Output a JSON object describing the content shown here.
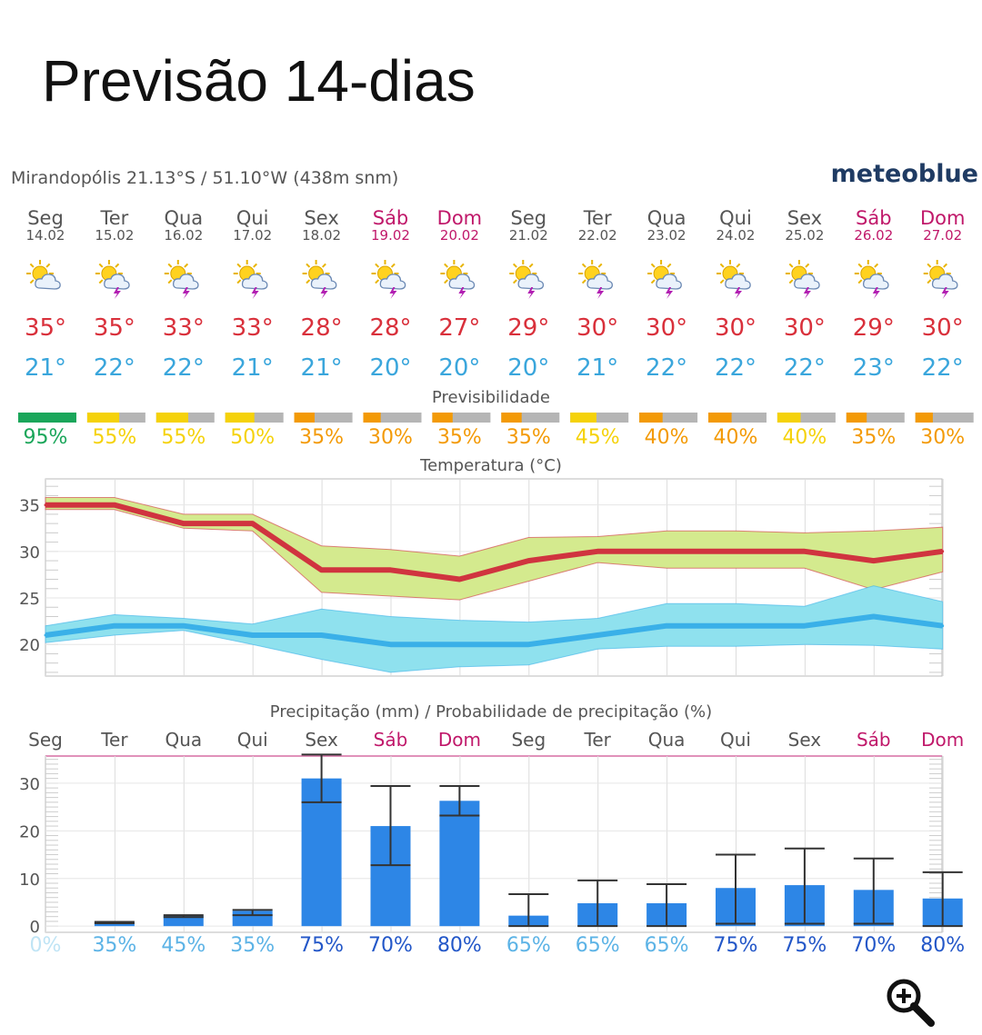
{
  "page": {
    "title": "Previsão 14-dias"
  },
  "location": {
    "text": "Mirandopólis  21.13°S / 51.10°W (438m snm)"
  },
  "brand": {
    "name": "meteoblue"
  },
  "colors": {
    "weekend": "#c0186a",
    "weekday": "#555555",
    "max_temp": "#d9303b",
    "min_temp": "#3aa6dc",
    "pred_green": "#1aa65a",
    "pred_yellow": "#f5d20a",
    "pred_orange": "#f39a06",
    "pred_grey": "#b5b5b5",
    "max_band": "#d4ea8e",
    "max_line": "#d0343f",
    "min_band": "#8fe1ee",
    "min_line": "#3ab0e8",
    "precip_bar": "#2d86e6",
    "prob_low": "#5cb3e6",
    "prob_high": "#2357c8"
  },
  "days": [
    {
      "name": "Seg",
      "date": "14.02",
      "weekend": false,
      "icon": "sun-cloud-icon",
      "tmax": "35°",
      "tmin": "21°",
      "pred": "95%",
      "pred_level": "green",
      "pred_fill": 1.0
    },
    {
      "name": "Ter",
      "date": "15.02",
      "weekend": false,
      "icon": "sun-thunderstorm-icon",
      "tmax": "35°",
      "tmin": "22°",
      "pred": "55%",
      "pred_level": "yellow",
      "pred_fill": 0.55
    },
    {
      "name": "Qua",
      "date": "16.02",
      "weekend": false,
      "icon": "sun-thunderstorm-icon",
      "tmax": "33°",
      "tmin": "22°",
      "pred": "55%",
      "pred_level": "yellow",
      "pred_fill": 0.55
    },
    {
      "name": "Qui",
      "date": "17.02",
      "weekend": false,
      "icon": "sun-thunderstorm-icon",
      "tmax": "33°",
      "tmin": "21°",
      "pred": "50%",
      "pred_level": "yellow",
      "pred_fill": 0.5
    },
    {
      "name": "Sex",
      "date": "18.02",
      "weekend": false,
      "icon": "sun-thunderstorm-icon",
      "tmax": "28°",
      "tmin": "21°",
      "pred": "35%",
      "pred_level": "orange",
      "pred_fill": 0.35
    },
    {
      "name": "Sáb",
      "date": "19.02",
      "weekend": true,
      "icon": "sun-thunderstorm-icon",
      "tmax": "28°",
      "tmin": "20°",
      "pred": "30%",
      "pred_level": "orange",
      "pred_fill": 0.3
    },
    {
      "name": "Dom",
      "date": "20.02",
      "weekend": true,
      "icon": "sun-thunderstorm-icon",
      "tmax": "27°",
      "tmin": "20°",
      "pred": "35%",
      "pred_level": "orange",
      "pred_fill": 0.35
    },
    {
      "name": "Seg",
      "date": "21.02",
      "weekend": false,
      "icon": "sun-thunderstorm-icon",
      "tmax": "29°",
      "tmin": "20°",
      "pred": "35%",
      "pred_level": "orange",
      "pred_fill": 0.35
    },
    {
      "name": "Ter",
      "date": "22.02",
      "weekend": false,
      "icon": "sun-thunderstorm-icon",
      "tmax": "30°",
      "tmin": "21°",
      "pred": "45%",
      "pred_level": "yellow",
      "pred_fill": 0.45
    },
    {
      "name": "Qua",
      "date": "23.02",
      "weekend": false,
      "icon": "sun-thunderstorm-icon",
      "tmax": "30°",
      "tmin": "22°",
      "pred": "40%",
      "pred_level": "orange",
      "pred_fill": 0.4
    },
    {
      "name": "Qui",
      "date": "24.02",
      "weekend": false,
      "icon": "sun-thunderstorm-icon",
      "tmax": "30°",
      "tmin": "22°",
      "pred": "40%",
      "pred_level": "orange",
      "pred_fill": 0.4
    },
    {
      "name": "Sex",
      "date": "25.02",
      "weekend": false,
      "icon": "sun-thunderstorm-icon",
      "tmax": "30°",
      "tmin": "22°",
      "pred": "40%",
      "pred_level": "yellow",
      "pred_fill": 0.4
    },
    {
      "name": "Sáb",
      "date": "26.02",
      "weekend": true,
      "icon": "sun-thunderstorm-icon",
      "tmax": "29°",
      "tmin": "23°",
      "pred": "35%",
      "pred_level": "orange",
      "pred_fill": 0.35
    },
    {
      "name": "Dom",
      "date": "27.02",
      "weekend": true,
      "icon": "sun-thunderstorm-icon",
      "tmax": "30°",
      "tmin": "22°",
      "pred": "30%",
      "pred_level": "orange",
      "pred_fill": 0.3
    }
  ],
  "predictability": {
    "title": "Previsibilidade"
  },
  "chart_data": [
    {
      "type": "line",
      "title": "Temperatura (°C)",
      "yticks": [
        20,
        25,
        30,
        35
      ],
      "ylim": [
        16.6,
        37.8
      ],
      "grid": true,
      "series": [
        {
          "values": [
            35,
            35,
            33,
            33,
            28,
            28,
            27,
            29,
            30,
            30,
            30,
            30,
            29,
            30
          ],
          "band_high": [
            35.8,
            35.8,
            34,
            34,
            30.6,
            30.2,
            29.5,
            31.5,
            31.6,
            32.2,
            32.2,
            32,
            32.2,
            32.6
          ],
          "band_low": [
            34.5,
            34.5,
            32.5,
            32.2,
            25.6,
            25.2,
            24.8,
            26.8,
            28.8,
            28.2,
            28.2,
            28.2,
            25.9,
            27.8
          ]
        },
        {
          "values": [
            21,
            22,
            22,
            21,
            21,
            20,
            20,
            20,
            21,
            22,
            22,
            22,
            23,
            22
          ],
          "band_high": [
            22,
            23.2,
            22.8,
            22.2,
            23.8,
            23,
            22.6,
            22.4,
            22.8,
            24.4,
            24.4,
            24.1,
            26.3,
            24.6
          ],
          "band_low": [
            20.2,
            21,
            21.5,
            20,
            18.4,
            17,
            17.6,
            17.8,
            19.5,
            19.8,
            19.8,
            20,
            19.9,
            19.5
          ]
        }
      ]
    },
    {
      "type": "bar",
      "title": "Precipitação (mm) / Probabilidade de precipitação (%)",
      "categories": [
        "Seg",
        "Ter",
        "Qua",
        "Qui",
        "Sex",
        "Sáb",
        "Dom",
        "Seg",
        "Ter",
        "Qua",
        "Qui",
        "Sex",
        "Sáb",
        "Dom"
      ],
      "yticks": [
        0,
        10,
        20,
        30
      ],
      "ylim": [
        -1.3,
        35.7
      ],
      "values": [
        0,
        0.8,
        2.2,
        3.2,
        31,
        21,
        26.3,
        2.2,
        4.8,
        4.8,
        8,
        8.6,
        7.6,
        5.8
      ],
      "err_low": [
        0,
        0.6,
        1.9,
        2.3,
        26,
        12.8,
        23.2,
        0,
        0,
        0,
        0.5,
        0.5,
        0.5,
        0
      ],
      "err_high": [
        0,
        0.9,
        2.3,
        3.4,
        36,
        29.4,
        29.4,
        6.7,
        9.6,
        8.8,
        15,
        16.3,
        14.2,
        11.3
      ],
      "probabilities": [
        "0%",
        "35%",
        "45%",
        "35%",
        "75%",
        "70%",
        "80%",
        "65%",
        "65%",
        "65%",
        "75%",
        "75%",
        "70%",
        "80%"
      ],
      "prob_level": [
        "none",
        "low",
        "low",
        "low",
        "high",
        "high",
        "high",
        "low",
        "low",
        "low",
        "high",
        "high",
        "high",
        "high"
      ]
    }
  ]
}
